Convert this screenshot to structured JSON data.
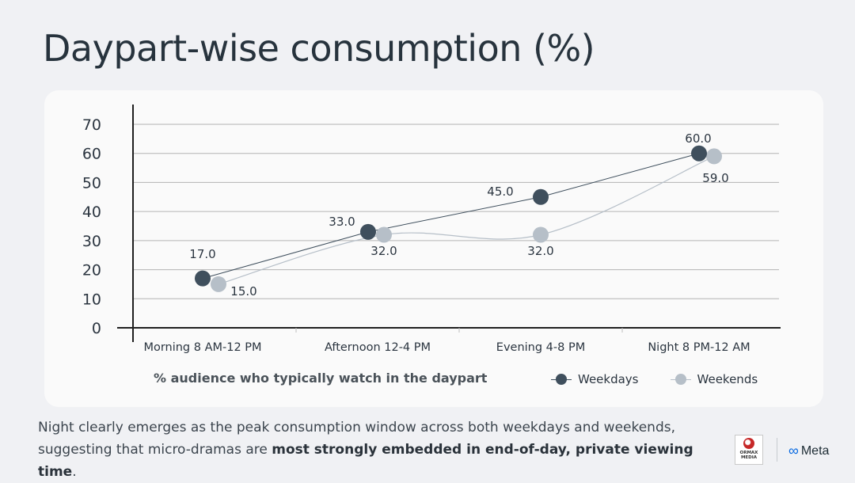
{
  "title": "Daypart-wise consumption (%)",
  "chart_data": {
    "type": "line",
    "categories": [
      "Morning 8 AM-12 PM",
      "Afternoon 12-4 PM",
      "Evening 4-8 PM",
      "Night 8 PM-12 AM"
    ],
    "series": [
      {
        "name": "Weekdays",
        "values": [
          17.0,
          33.0,
          45.0,
          60.0
        ],
        "color": "#3f4f5d",
        "labels": [
          "17.0",
          "33.0",
          "45.0",
          "60.0"
        ]
      },
      {
        "name": "Weekends",
        "values": [
          15.0,
          32.0,
          32.0,
          59.0
        ],
        "color": "#b6bfc8",
        "labels": [
          "15.0",
          "32.0",
          "32.0",
          "59.0"
        ]
      }
    ],
    "ylim": [
      0,
      70
    ],
    "yticks": [
      0,
      10,
      20,
      30,
      40,
      50,
      60,
      70
    ],
    "ytick_labels": [
      "0",
      "10",
      "20",
      "30",
      "40",
      "50",
      "60",
      "70"
    ],
    "xlabel": "% audience who typically watch in the daypart",
    "ylabel": "",
    "grid": true,
    "legend": "bottom-right"
  },
  "footer": {
    "text_plain": "Night clearly emerges as the peak consumption window across both weekdays and weekends, suggesting that micro-dramas are ",
    "text_bold": "most strongly embedded in end-of-day, private viewing time",
    "text_end": "."
  },
  "logos": {
    "ormax_line1": "ORMAX",
    "ormax_line2": "MEDIA",
    "meta_symbol": "∞",
    "meta_name": "Meta"
  },
  "colors": {
    "background": "#f0f1f4",
    "card": "#fafafa",
    "weekdays": "#3f4f5d",
    "weekends": "#b6bfc8",
    "grid": "#b3b3b3"
  }
}
